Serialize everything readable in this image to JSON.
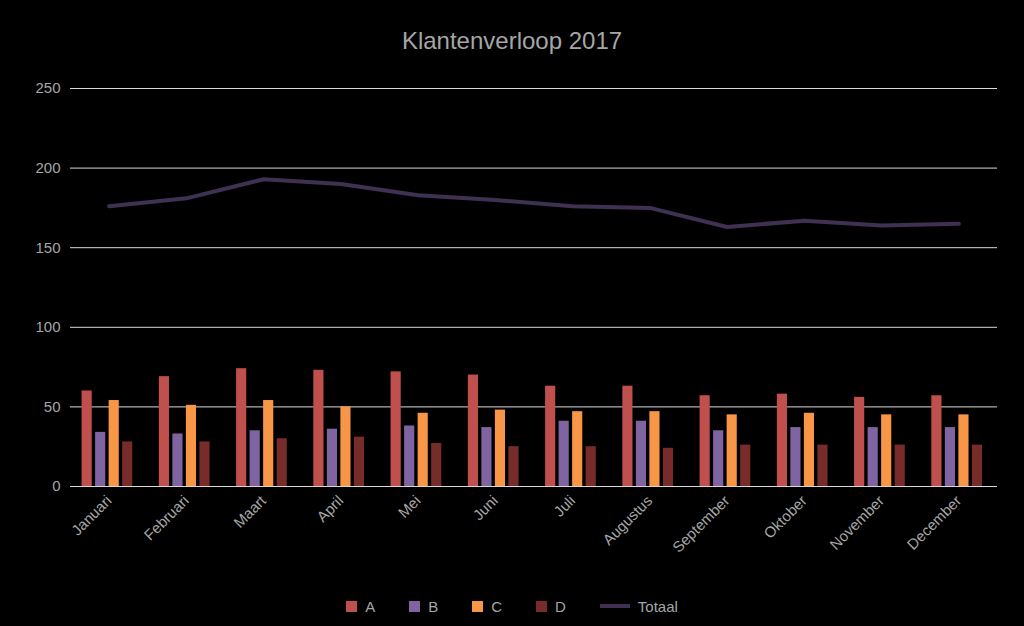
{
  "chart_data": {
    "type": "bar",
    "title": "Klantenverloop 2017",
    "categories": [
      "Januari",
      "Februari",
      "Maart",
      "April",
      "Mei",
      "Juni",
      "Juli",
      "Augustus",
      "September",
      "Oktober",
      "November",
      "December"
    ],
    "series": [
      {
        "name": "A",
        "type": "bar",
        "color": "#c0504d",
        "values": [
          60,
          69,
          74,
          73,
          72,
          70,
          63,
          63,
          57,
          58,
          56,
          57
        ]
      },
      {
        "name": "B",
        "type": "bar",
        "color": "#8064a2",
        "values": [
          34,
          33,
          35,
          36,
          38,
          37,
          41,
          41,
          35,
          37,
          37,
          37
        ]
      },
      {
        "name": "C",
        "type": "bar",
        "color": "#f79646",
        "values": [
          54,
          51,
          54,
          50,
          46,
          48,
          47,
          47,
          45,
          46,
          45,
          45
        ]
      },
      {
        "name": "D",
        "type": "bar",
        "color": "#772c2a",
        "values": [
          28,
          28,
          30,
          31,
          27,
          25,
          25,
          24,
          26,
          26,
          26,
          26
        ]
      },
      {
        "name": "Totaal",
        "type": "line",
        "color": "#403152",
        "values": [
          176,
          181,
          193,
          190,
          183,
          180,
          176,
          175,
          163,
          167,
          164,
          165
        ]
      }
    ],
    "ylim": [
      0,
      250
    ],
    "yticks": [
      0,
      50,
      100,
      150,
      200,
      250
    ],
    "grid": true,
    "legend": "bottom"
  }
}
